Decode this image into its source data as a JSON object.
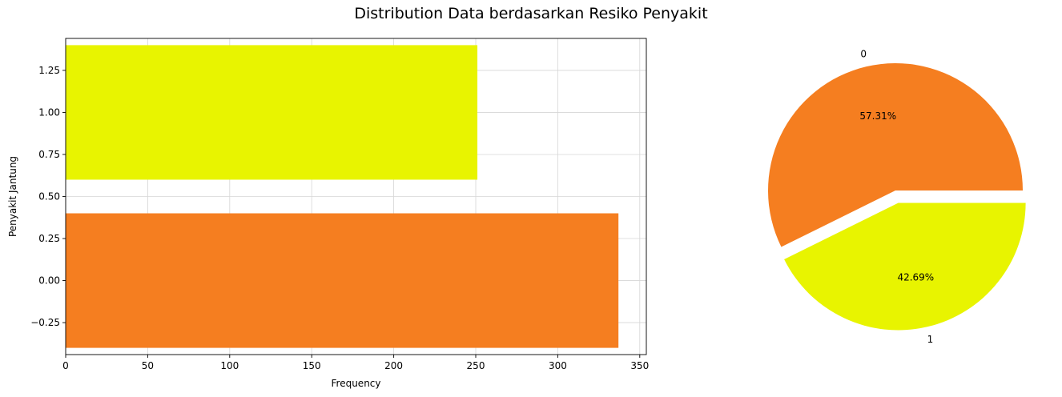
{
  "figure": {
    "title": "Distribution Data berdasarkan Resiko Penyakit"
  },
  "chart_data": [
    {
      "type": "bar",
      "orientation": "horizontal",
      "categories": [
        0,
        1
      ],
      "values": [
        337,
        251
      ],
      "colors": [
        "#f57e20",
        "#e8f400"
      ],
      "xlabel": "Frequency",
      "ylabel": "Penyakit Jantung",
      "xlim": [
        0,
        354
      ],
      "ylim": [
        -0.44,
        1.44
      ],
      "xticks": [
        0,
        50,
        100,
        150,
        200,
        250,
        300,
        350
      ],
      "yticks": [
        -0.25,
        0.0,
        0.25,
        0.5,
        0.75,
        1.0,
        1.25
      ],
      "ytick_labels": [
        "−0.25",
        "0.00",
        "0.25",
        "0.50",
        "0.75",
        "1.00",
        "1.25"
      ],
      "grid": true
    },
    {
      "type": "pie",
      "labels": [
        "0",
        "1"
      ],
      "values": [
        57.31,
        42.69
      ],
      "percent_labels": [
        "57.31%",
        "42.69%"
      ],
      "colors": [
        "#f57e20",
        "#e8f400"
      ],
      "explode": [
        0,
        0.1
      ]
    }
  ]
}
